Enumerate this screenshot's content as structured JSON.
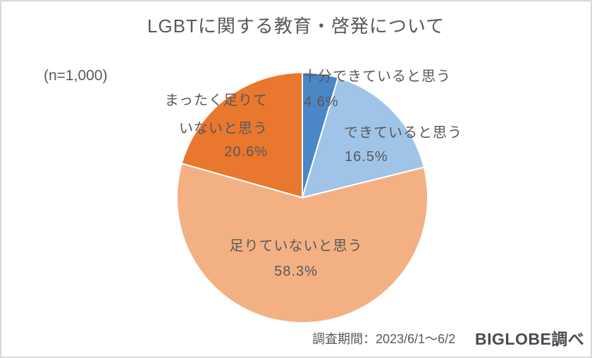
{
  "page": {
    "title": "LGBTに関する教育・啓発について",
    "sample_size_label": "(n=1,000)",
    "survey_period_label": "調査期間：2023/6/1～6/2",
    "source_label": "BIGLOBE調べ"
  },
  "chart_data": {
    "type": "pie",
    "title": "LGBTに関する教育・啓発について",
    "sample_size": 1000,
    "start_angle_deg": 0,
    "direction": "clockwise",
    "legend_position": "none",
    "slice_border_color": "#ffffff",
    "text_color": "#595959",
    "slices": [
      {
        "label": "十分できていると思う",
        "value": 4.6,
        "pct_label": "4.6%",
        "color": "#4b86c6"
      },
      {
        "label": "できていると思う",
        "value": 16.5,
        "pct_label": "16.5%",
        "color": "#a0c4e8"
      },
      {
        "label": "足りていないと思う",
        "value": 58.3,
        "pct_label": "58.3%",
        "color": "#f3b183"
      },
      {
        "label": "まったく足りて\nいないと思う",
        "value": 20.6,
        "pct_label": "20.6%",
        "color": "#e9772e"
      }
    ]
  }
}
